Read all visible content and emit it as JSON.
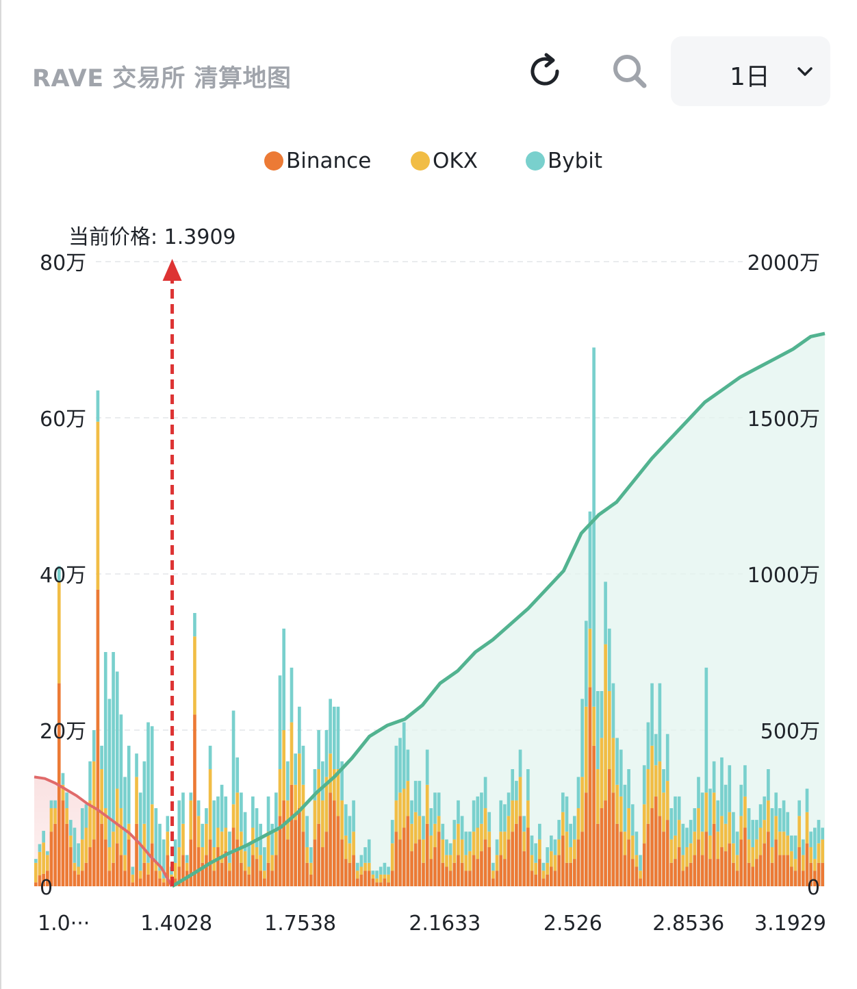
{
  "header": {
    "title": "RAVE 交易所 清算地图",
    "range_label": "1日",
    "refresh_icon": "refresh-icon",
    "search_icon": "search-icon",
    "chevron_icon": "chevron-down-icon"
  },
  "legend": [
    {
      "name": "Binance",
      "color": "#ec7a35"
    },
    {
      "name": "OKX",
      "color": "#f1bd45"
    },
    {
      "name": "Bybit",
      "color": "#79d0cd"
    }
  ],
  "chart_data": {
    "type": "bar",
    "current_price_label": "当前价格: 1.3909",
    "current_price": 1.3909,
    "x_tick_labels": [
      "1.0···",
      "1.4028",
      "1.7538",
      "2.1633",
      "2.526",
      "2.8536",
      "3.1929"
    ],
    "x_ticks": [
      1.0,
      1.4028,
      1.7538,
      2.1633,
      2.526,
      2.8536,
      3.1929
    ],
    "x_range": [
      1.0,
      3.24
    ],
    "y_left": {
      "labels": [
        "0",
        "20万",
        "40万",
        "60万",
        "80万"
      ],
      "range": [
        0,
        800000
      ]
    },
    "y_right": {
      "labels": [
        "0",
        "500万",
        "1000万",
        "1500万",
        "2000万"
      ],
      "range": [
        0,
        20000000
      ]
    },
    "grid": "horizontal-dashed",
    "legend_position": "top-center",
    "series": [
      {
        "name": "Binance",
        "color": "#ec7a35",
        "values": [
          5000,
          14000,
          16000,
          20000,
          70000,
          80000,
          260000,
          110000,
          80000,
          50000,
          20000,
          15000,
          20000,
          30000,
          50000,
          60000,
          380000,
          80000,
          60000,
          20000,
          30000,
          55000,
          40000,
          20000,
          60000,
          5000,
          80000,
          10000,
          30000,
          15000,
          55000,
          20000,
          10000,
          5000,
          40000,
          5000,
          10000,
          25000,
          40000,
          20000,
          60000,
          220000,
          50000,
          30000,
          40000,
          60000,
          20000,
          50000,
          30000,
          45000,
          20000,
          75000,
          60000,
          30000,
          20000,
          15000,
          40000,
          35000,
          20000,
          10000,
          30000,
          20000,
          40000,
          90000,
          110000,
          60000,
          130000,
          85000,
          100000,
          70000,
          30000,
          15000,
          60000,
          80000,
          50000,
          70000,
          120000,
          110000,
          90000,
          60000,
          35000,
          30000,
          40000,
          10000,
          15000,
          20000,
          20000,
          10000,
          5000,
          5000,
          10000,
          5000,
          20000,
          70000,
          60000,
          75000,
          90000,
          45000,
          55000,
          60000,
          30000,
          80000,
          35000,
          50000,
          70000,
          30000,
          25000,
          20000,
          30000,
          40000,
          30000,
          20000,
          20000,
          40000,
          35000,
          45000,
          60000,
          50000,
          10000,
          20000,
          40000,
          35000,
          60000,
          70000,
          80000,
          90000,
          45000,
          75000,
          20000,
          15000,
          35000,
          10000,
          15000,
          25000,
          20000,
          40000,
          65000,
          30000,
          30000,
          35000,
          60000,
          70000,
          120000,
          255000,
          180000,
          80000,
          100000,
          110000,
          150000,
          120000,
          80000,
          70000,
          40000,
          60000,
          35000,
          25000,
          10000,
          55000,
          80000,
          100000,
          115000,
          90000,
          70000,
          85000,
          30000,
          35000,
          50000,
          20000,
          25000,
          30000,
          40000,
          60000,
          40000,
          70000,
          35000,
          80000,
          35000,
          50000,
          45000,
          55000,
          30000,
          20000,
          60000,
          75000,
          30000,
          25000,
          35000,
          40000,
          55000,
          70000,
          30000,
          60000,
          40000,
          40000,
          40000,
          25000,
          20000,
          50000,
          20000,
          55000,
          30000,
          20000,
          30000,
          30000
        ]
      },
      {
        "name": "OKX",
        "color": "#f1bd45",
        "values": [
          25000,
          30000,
          40000,
          20000,
          30000,
          20000,
          130000,
          20000,
          20000,
          15000,
          10000,
          10000,
          40000,
          45000,
          60000,
          100000,
          215000,
          70000,
          40000,
          30000,
          40000,
          70000,
          60000,
          20000,
          20000,
          10000,
          60000,
          10000,
          50000,
          15000,
          50000,
          10000,
          10000,
          5000,
          30000,
          10000,
          20000,
          25000,
          40000,
          10000,
          50000,
          100000,
          40000,
          20000,
          40000,
          90000,
          30000,
          25000,
          40000,
          30000,
          10000,
          30000,
          60000,
          40000,
          25000,
          10000,
          35000,
          15000,
          20000,
          10000,
          40000,
          20000,
          30000,
          60000,
          90000,
          50000,
          80000,
          45000,
          70000,
          60000,
          20000,
          15000,
          50000,
          70000,
          60000,
          70000,
          50000,
          40000,
          60000,
          50000,
          30000,
          25000,
          30000,
          10000,
          10000,
          10000,
          10000,
          5000,
          5000,
          10000,
          5000,
          10000,
          35000,
          40000,
          60000,
          50000,
          45000,
          35000,
          40000,
          30000,
          30000,
          50000,
          30000,
          30000,
          20000,
          30000,
          15000,
          20000,
          30000,
          40000,
          30000,
          20000,
          25000,
          30000,
          40000,
          35000,
          40000,
          20000,
          10000,
          20000,
          30000,
          35000,
          30000,
          40000,
          30000,
          50000,
          25000,
          35000,
          20000,
          15000,
          25000,
          10000,
          15000,
          20000,
          20000,
          20000,
          30000,
          40000,
          20000,
          25000,
          40000,
          70000,
          110000,
          75000,
          50000,
          70000,
          90000,
          200000,
          100000,
          70000,
          50000,
          45000,
          30000,
          40000,
          30000,
          15000,
          10000,
          50000,
          70000,
          80000,
          40000,
          70000,
          50000,
          50000,
          30000,
          30000,
          35000,
          20000,
          25000,
          25000,
          30000,
          40000,
          30000,
          50000,
          30000,
          40000,
          35000,
          40000,
          35000,
          40000,
          25000,
          20000,
          30000,
          40000,
          30000,
          25000,
          25000,
          35000,
          30000,
          40000,
          20000,
          30000,
          30000,
          30000,
          25000,
          20000,
          15000,
          40000,
          20000,
          40000,
          20000,
          15000,
          25000,
          30000
        ]
      },
      {
        "name": "Bybit",
        "color": "#79d0cd",
        "values": [
          5000,
          10000,
          15000,
          5000,
          10000,
          10000,
          20000,
          15000,
          20000,
          20000,
          45000,
          30000,
          40000,
          30000,
          50000,
          40000,
          40000,
          30000,
          200000,
          190000,
          230000,
          150000,
          120000,
          100000,
          100000,
          10000,
          30000,
          100000,
          80000,
          180000,
          100000,
          70000,
          60000,
          50000,
          20000,
          10000,
          30000,
          60000,
          40000,
          10000,
          10000,
          30000,
          20000,
          30000,
          20000,
          30000,
          60000,
          40000,
          60000,
          40000,
          40000,
          120000,
          45000,
          50000,
          50000,
          30000,
          40000,
          50000,
          40000,
          30000,
          45000,
          40000,
          50000,
          120000,
          130000,
          50000,
          70000,
          40000,
          60000,
          50000,
          40000,
          20000,
          40000,
          50000,
          50000,
          60000,
          70000,
          80000,
          80000,
          50000,
          40000,
          35000,
          40000,
          10000,
          15000,
          20000,
          30000,
          5000,
          10000,
          10000,
          15000,
          10000,
          30000,
          70000,
          70000,
          85000,
          40000,
          30000,
          40000,
          45000,
          30000,
          45000,
          35000,
          40000,
          30000,
          20000,
          20000,
          15000,
          25000,
          30000,
          30000,
          30000,
          25000,
          40000,
          40000,
          40000,
          40000,
          25000,
          10000,
          20000,
          40000,
          35000,
          30000,
          40000,
          25000,
          35000,
          20000,
          40000,
          25000,
          25000,
          20000,
          10000,
          20000,
          20000,
          20000,
          25000,
          25000,
          45000,
          30000,
          30000,
          40000,
          100000,
          110000,
          150000,
          460000,
          100000,
          60000,
          80000,
          80000,
          70000,
          60000,
          60000,
          60000,
          50000,
          40000,
          30000,
          20000,
          50000,
          60000,
          80000,
          40000,
          100000,
          30000,
          60000,
          40000,
          50000,
          30000,
          40000,
          25000,
          30000,
          30000,
          40000,
          50000,
          160000,
          60000,
          40000,
          40000,
          75000,
          50000,
          60000,
          40000,
          30000,
          40000,
          40000,
          40000,
          35000,
          25000,
          30000,
          30000,
          40000,
          50000,
          30000,
          30000,
          40000,
          30000,
          20000,
          30000,
          20000,
          20000,
          30000,
          20000,
          40000,
          30000,
          15000,
          15000,
          15000
        ]
      }
    ],
    "cumulative_short": [
      [
        1.0,
        3500000
      ],
      [
        1.03,
        3450000
      ],
      [
        1.06,
        3300000
      ],
      [
        1.09,
        3100000
      ],
      [
        1.12,
        2900000
      ],
      [
        1.15,
        2650000
      ],
      [
        1.18,
        2450000
      ],
      [
        1.21,
        2200000
      ],
      [
        1.24,
        1950000
      ],
      [
        1.27,
        1700000
      ],
      [
        1.3,
        1350000
      ],
      [
        1.33,
        950000
      ],
      [
        1.36,
        600000
      ],
      [
        1.39,
        0
      ]
    ],
    "cumulative_long": [
      [
        1.3909,
        0
      ],
      [
        1.45,
        400000
      ],
      [
        1.5,
        750000
      ],
      [
        1.55,
        1050000
      ],
      [
        1.6,
        1300000
      ],
      [
        1.65,
        1600000
      ],
      [
        1.7,
        1900000
      ],
      [
        1.75,
        2400000
      ],
      [
        1.8,
        3000000
      ],
      [
        1.85,
        3500000
      ],
      [
        1.9,
        4100000
      ],
      [
        1.95,
        4800000
      ],
      [
        2.0,
        5150000
      ],
      [
        2.05,
        5350000
      ],
      [
        2.1,
        5800000
      ],
      [
        2.15,
        6500000
      ],
      [
        2.2,
        6900000
      ],
      [
        2.25,
        7500000
      ],
      [
        2.3,
        7900000
      ],
      [
        2.35,
        8400000
      ],
      [
        2.4,
        8900000
      ],
      [
        2.45,
        9500000
      ],
      [
        2.5,
        10100000
      ],
      [
        2.55,
        11300000
      ],
      [
        2.6,
        11900000
      ],
      [
        2.65,
        12300000
      ],
      [
        2.7,
        13000000
      ],
      [
        2.75,
        13700000
      ],
      [
        2.8,
        14300000
      ],
      [
        2.85,
        14900000
      ],
      [
        2.9,
        15500000
      ],
      [
        2.95,
        15900000
      ],
      [
        3.0,
        16300000
      ],
      [
        3.05,
        16600000
      ],
      [
        3.1,
        16900000
      ],
      [
        3.15,
        17200000
      ],
      [
        3.2,
        17600000
      ],
      [
        3.24,
        17700000
      ]
    ]
  }
}
